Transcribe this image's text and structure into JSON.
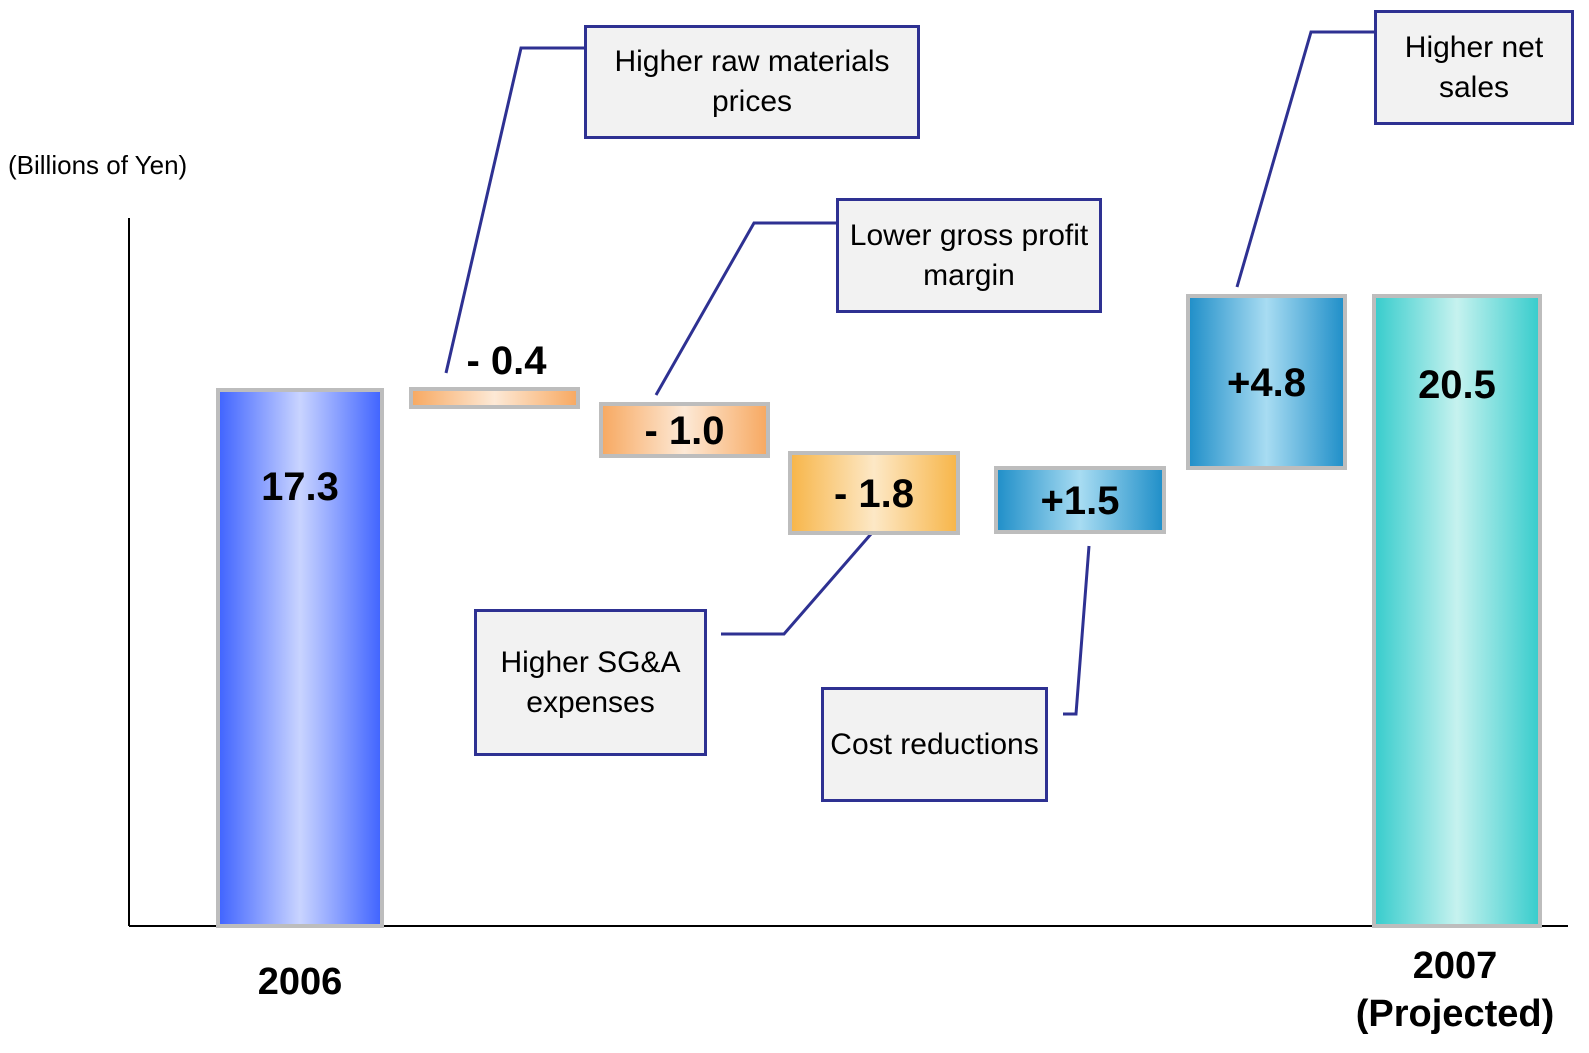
{
  "chart_data": {
    "type": "bar",
    "subtype": "waterfall",
    "ylabel": "(Billions of Yen)",
    "categories": [
      "2006",
      "Higher raw materials prices",
      "Lower gross profit margin",
      "Higher SG&A expenses",
      "Cost reductions",
      "Higher net sales",
      "2007 (Projected)"
    ],
    "steps": [
      {
        "name": "2006",
        "label": "17.3",
        "value": 17.3,
        "kind": "total",
        "color": "#3f63ff"
      },
      {
        "name": "Higher raw materials prices",
        "label": "- 0.4",
        "value": -0.4,
        "kind": "delta",
        "color": "#f7a860"
      },
      {
        "name": "Lower gross profit margin",
        "label": "- 1.0",
        "value": -1.0,
        "kind": "delta",
        "color": "#f7a860"
      },
      {
        "name": "Higher SG&A expenses",
        "label": "- 1.8",
        "value": -1.8,
        "kind": "delta",
        "color": "#f7b548"
      },
      {
        "name": "Cost reductions",
        "label": "+1.5",
        "value": 1.5,
        "kind": "delta",
        "color": "#1e8ec8"
      },
      {
        "name": "Higher net sales",
        "label": "+4.8",
        "value": 4.8,
        "kind": "delta",
        "color": "#1e8ec8"
      },
      {
        "name": "2007 (Projected)",
        "label": "20.5",
        "value": 20.5,
        "kind": "total",
        "color": "#36cccc"
      }
    ],
    "callouts": [
      {
        "text": "Higher raw materials prices"
      },
      {
        "text": "Lower gross profit margin"
      },
      {
        "text": "Higher SG&A expenses"
      },
      {
        "text": "Cost reductions"
      },
      {
        "text": "Higher net sales"
      }
    ],
    "x_labels": {
      "first": "2006",
      "last_line1": "2007",
      "last_line2": "(Projected)"
    },
    "accent_color": "#2e3192"
  }
}
